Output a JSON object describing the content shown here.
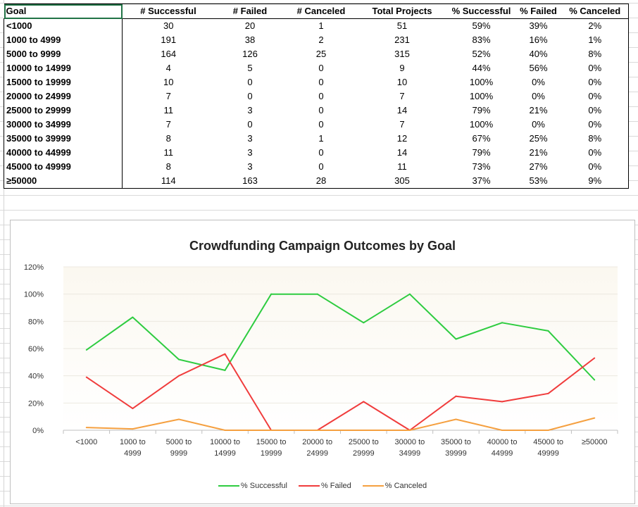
{
  "table": {
    "headers": [
      "Goal",
      "# Successful",
      "# Failed",
      "# Canceled",
      "Total Projects",
      "% Successful",
      "% Failed",
      "% Canceled"
    ],
    "rows": [
      [
        "<1000",
        "30",
        "20",
        "1",
        "51",
        "59%",
        "39%",
        "2%"
      ],
      [
        "1000 to 4999",
        "191",
        "38",
        "2",
        "231",
        "83%",
        "16%",
        "1%"
      ],
      [
        "5000 to 9999",
        "164",
        "126",
        "25",
        "315",
        "52%",
        "40%",
        "8%"
      ],
      [
        "10000 to 14999",
        "4",
        "5",
        "0",
        "9",
        "44%",
        "56%",
        "0%"
      ],
      [
        "15000 to 19999",
        "10",
        "0",
        "0",
        "10",
        "100%",
        "0%",
        "0%"
      ],
      [
        "20000 to 24999",
        "7",
        "0",
        "0",
        "7",
        "100%",
        "0%",
        "0%"
      ],
      [
        "25000 to 29999",
        "11",
        "3",
        "0",
        "14",
        "79%",
        "21%",
        "0%"
      ],
      [
        "30000 to 34999",
        "7",
        "0",
        "0",
        "7",
        "100%",
        "0%",
        "0%"
      ],
      [
        "35000 to 39999",
        "8",
        "3",
        "1",
        "12",
        "67%",
        "25%",
        "8%"
      ],
      [
        "40000 to 44999",
        "11",
        "3",
        "0",
        "14",
        "79%",
        "21%",
        "0%"
      ],
      [
        "45000 to 49999",
        "8",
        "3",
        "0",
        "11",
        "73%",
        "27%",
        "0%"
      ],
      [
        "≥50000",
        "114",
        "163",
        "28",
        "305",
        "37%",
        "53%",
        "9%"
      ]
    ]
  },
  "colors": {
    "successful": "#2ecc40",
    "failed": "#f03c3c",
    "canceled": "#f5a040",
    "selection": "#217346"
  },
  "chart_data": {
    "type": "line",
    "title": "Crowdfunding Campaign Outcomes by Goal",
    "categories": [
      [
        "<1000",
        ""
      ],
      [
        "1000 to",
        "4999"
      ],
      [
        "5000 to",
        "9999"
      ],
      [
        "10000 to",
        "14999"
      ],
      [
        "15000 to",
        "19999"
      ],
      [
        "20000 to",
        "24999"
      ],
      [
        "25000 to",
        "29999"
      ],
      [
        "30000 to",
        "34999"
      ],
      [
        "35000 to",
        "39999"
      ],
      [
        "40000 to",
        "44999"
      ],
      [
        "45000 to",
        "49999"
      ],
      [
        "≥50000",
        ""
      ]
    ],
    "series": [
      {
        "name": "% Successful",
        "color": "#2ecc40",
        "values": [
          59,
          83,
          52,
          44,
          100,
          100,
          79,
          100,
          67,
          79,
          73,
          37
        ]
      },
      {
        "name": "% Failed",
        "color": "#f03c3c",
        "values": [
          39,
          16,
          40,
          56,
          0,
          0,
          21,
          0,
          25,
          21,
          27,
          53
        ]
      },
      {
        "name": "% Canceled",
        "color": "#f5a040",
        "values": [
          2,
          1,
          8,
          0,
          0,
          0,
          0,
          0,
          8,
          0,
          0,
          9
        ]
      }
    ],
    "yticks": [
      "0%",
      "20%",
      "40%",
      "60%",
      "80%",
      "100%",
      "120%"
    ],
    "ylim": [
      0,
      120
    ],
    "xlabel": "",
    "ylabel": "",
    "legend": "bottom",
    "grid": true
  }
}
